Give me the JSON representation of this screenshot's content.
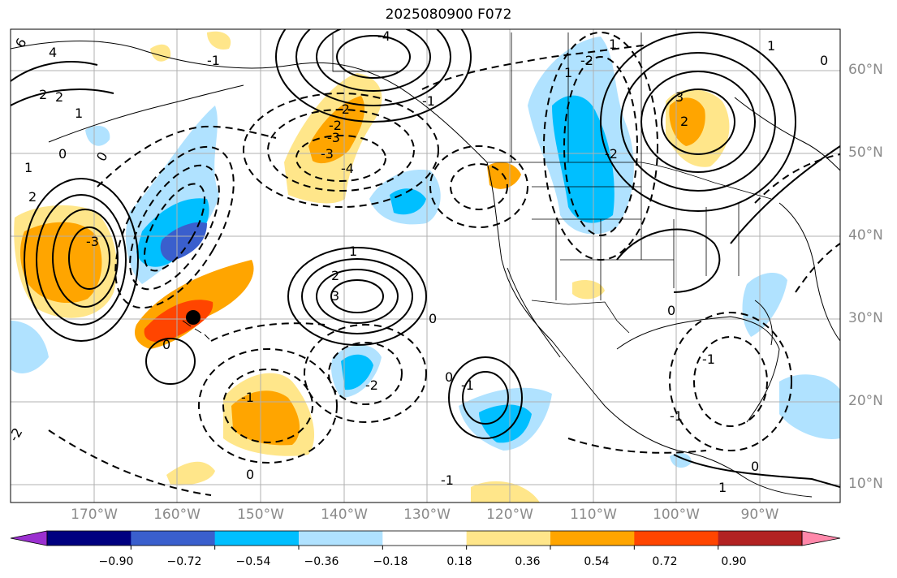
{
  "title": "2025080900 F072",
  "lat_labels": [
    "60°N",
    "50°N",
    "40°N",
    "30°N",
    "20°N",
    "10°N"
  ],
  "lon_labels": [
    "170°W",
    "160°W",
    "150°W",
    "140°W",
    "130°W",
    "120°W",
    "110°W",
    "100°W",
    "90°W"
  ],
  "colorbar": {
    "colors": [
      "#9b30d0",
      "#000080",
      "#3a5fcd",
      "#00bfff",
      "#b0e2ff",
      "#ffffff",
      "#ffe68a",
      "#ffa500",
      "#ff4500",
      "#b22222",
      "#ff88aa"
    ],
    "ticks": [
      "−0.90",
      "−0.72",
      "−0.54",
      "−0.36",
      "−0.18",
      "0.18",
      "0.36",
      "0.54",
      "0.72",
      "0.90"
    ]
  },
  "contour_labels": [
    "6",
    "4",
    "2",
    "2",
    "1",
    "0",
    "1",
    "2",
    "0",
    "-1",
    "-2",
    "-3",
    "-4",
    "-1",
    "-2",
    "-3",
    "-4",
    "3",
    "2",
    "1",
    "0",
    "-2",
    "-3",
    "0",
    "-1",
    "-2",
    "3",
    "2",
    "1",
    "0",
    "-1",
    "-2",
    "1",
    "0",
    "1",
    "0",
    "-1",
    "-1",
    "0",
    "0",
    "-1",
    "1",
    "-2"
  ],
  "marker": "station-dot"
}
